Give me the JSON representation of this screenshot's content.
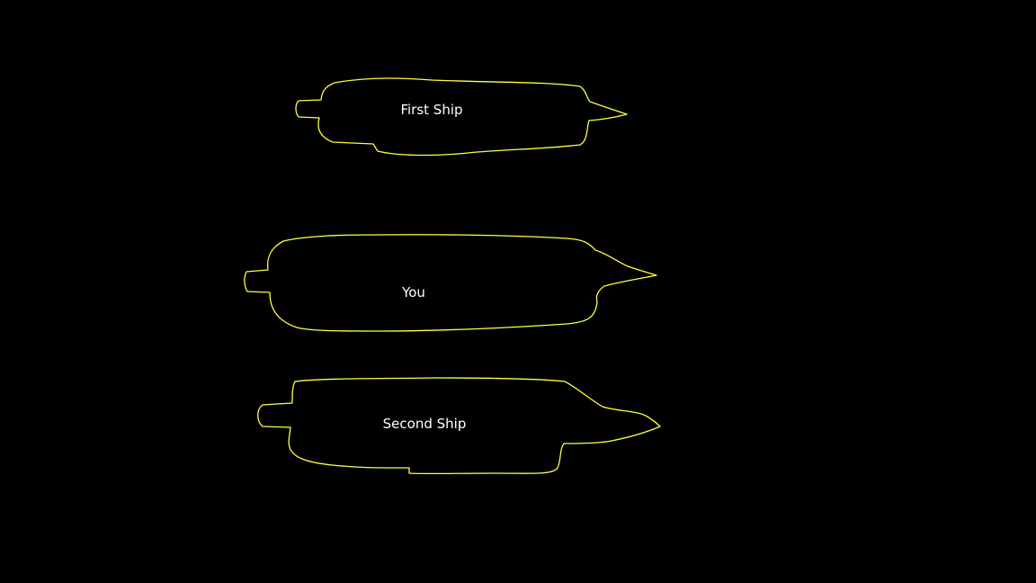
{
  "scene": {
    "background_color": "#000000",
    "outline_color": "#ffff40",
    "label_color": "#ffffff"
  },
  "ships": [
    {
      "id": "first",
      "label": "First Ship"
    },
    {
      "id": "player",
      "label": "You"
    },
    {
      "id": "second",
      "label": "Second Ship"
    }
  ]
}
